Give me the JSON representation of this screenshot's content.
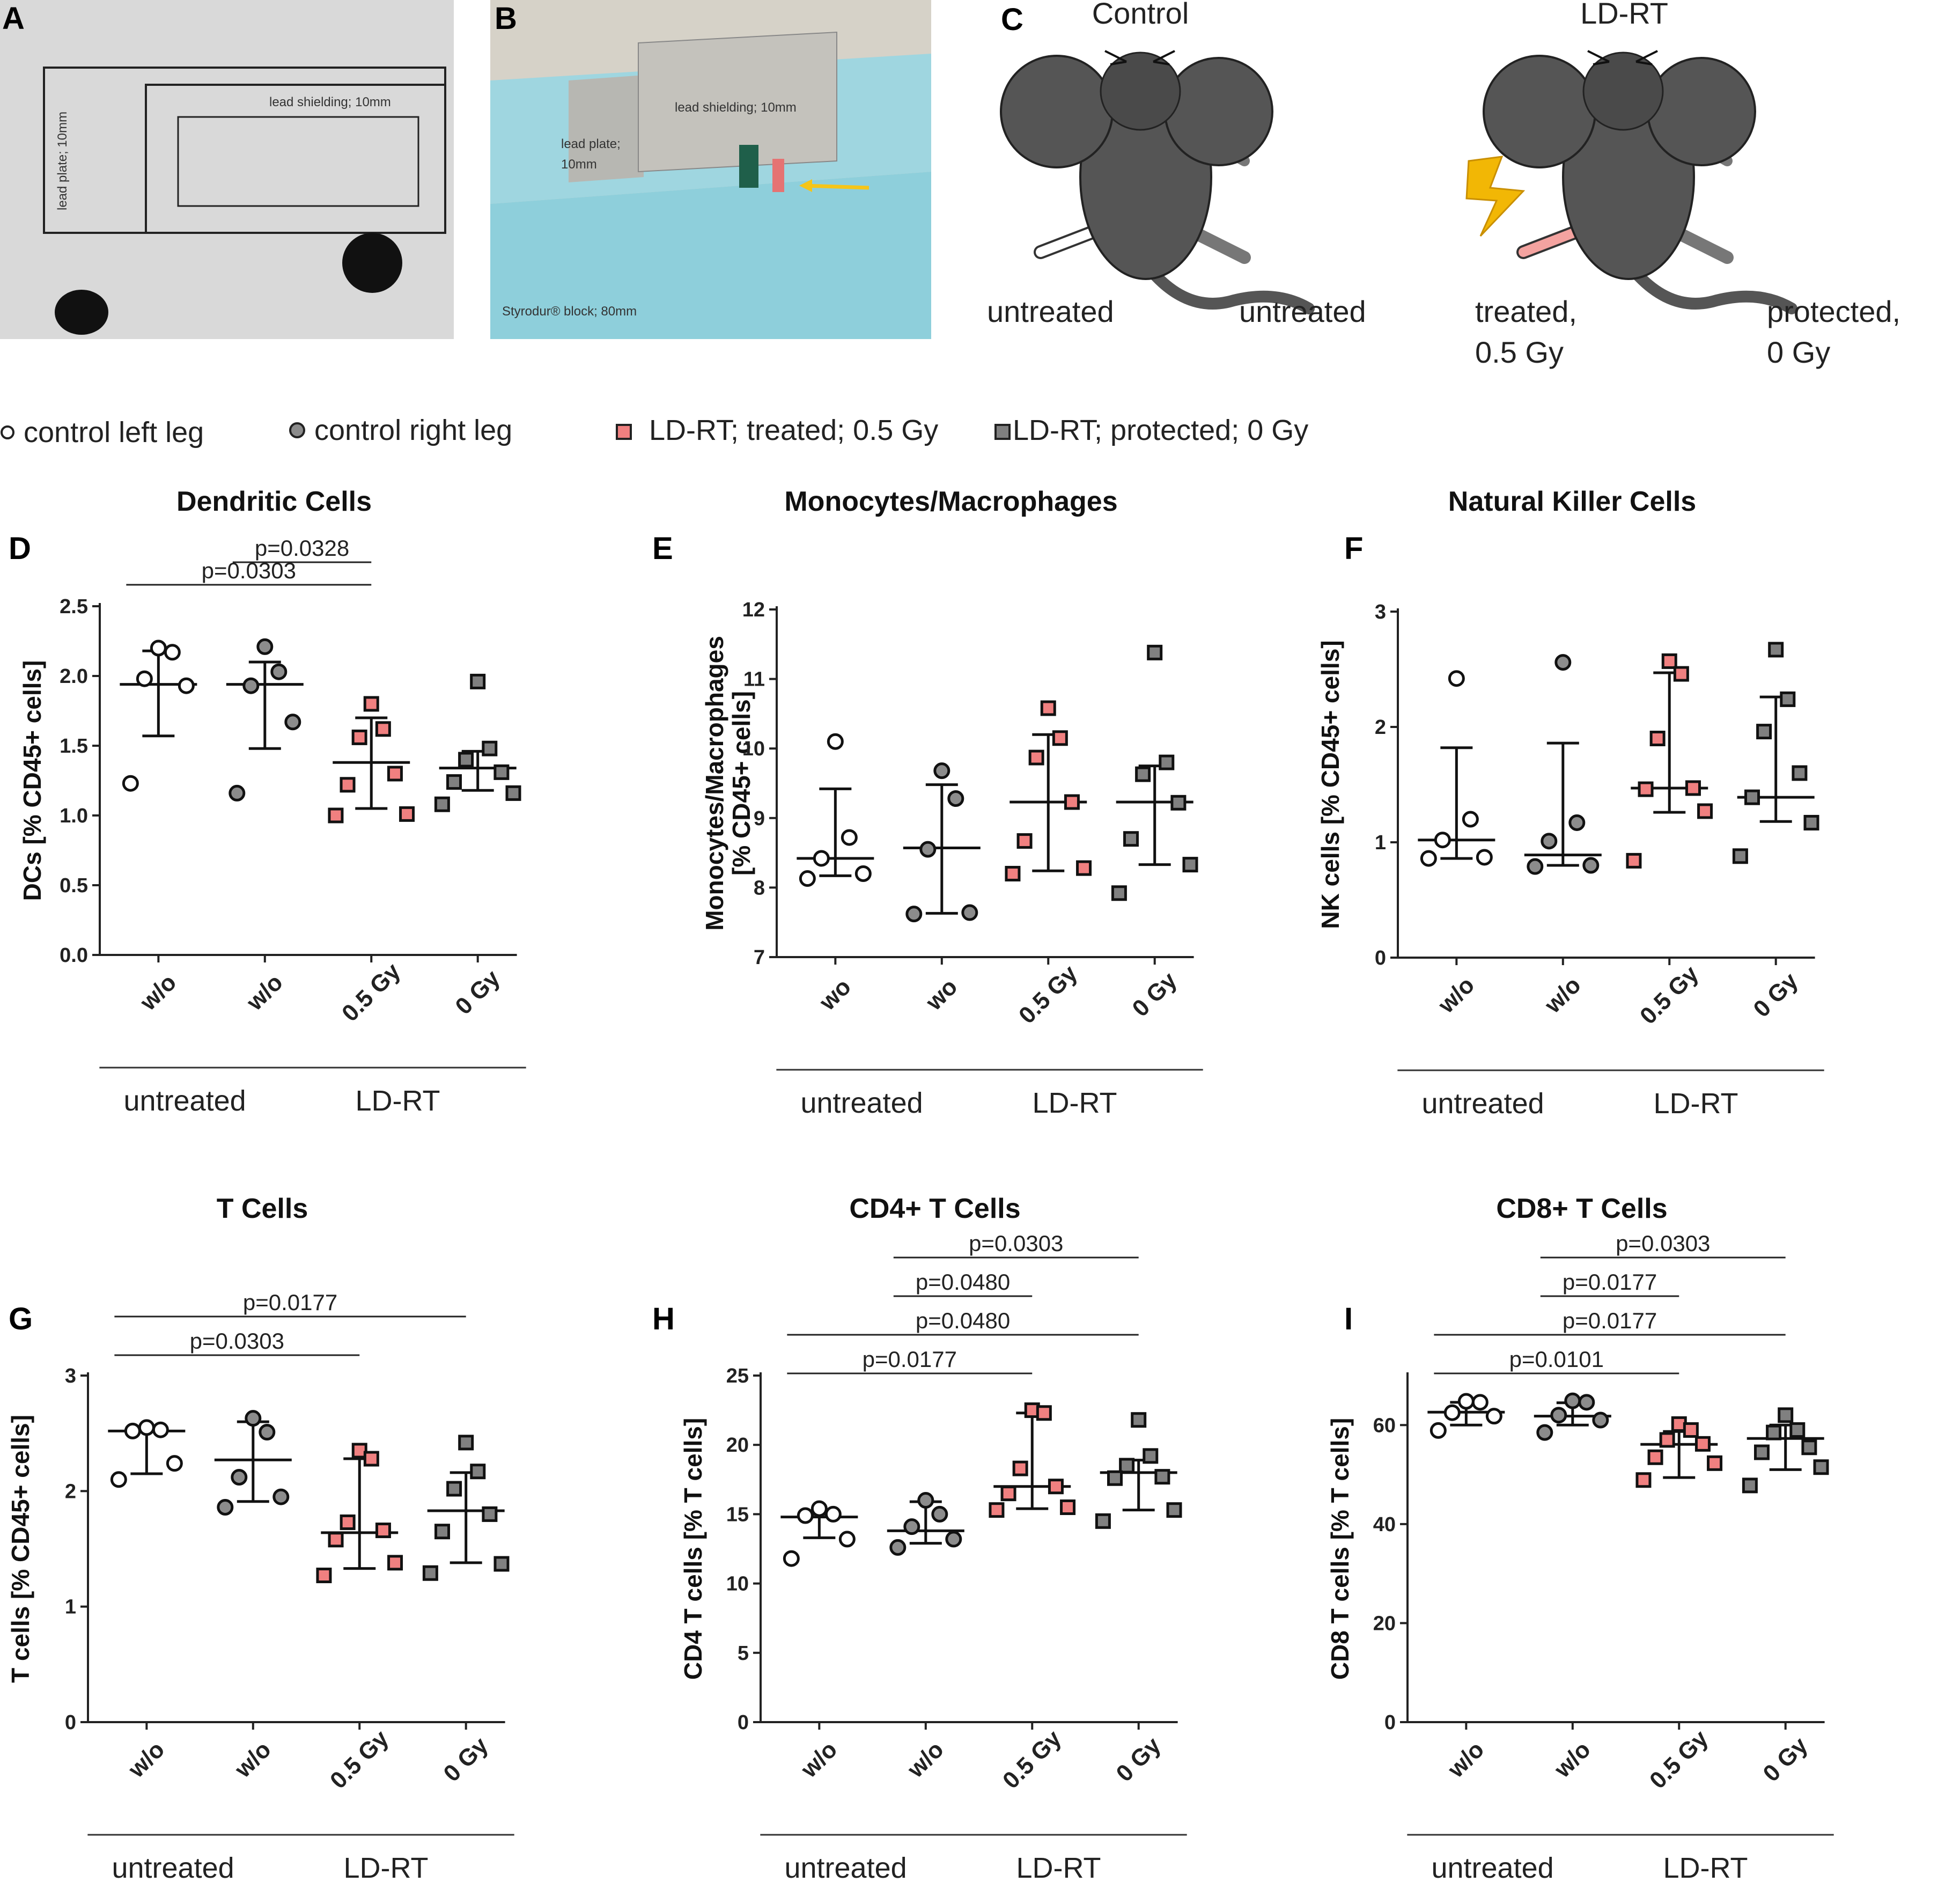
{
  "figure": {
    "panel_a": {
      "letter": "A",
      "lead_plate_label": "lead plate; 10mm",
      "lead_shielding_label": "lead shielding; 10mm"
    },
    "panel_b": {
      "letter": "B",
      "lead_shielding_label": "lead shielding; 10mm",
      "lead_plate_label_1": "lead plate;",
      "lead_plate_label_2": "10mm",
      "block_label": "Styrodur® block; 80mm",
      "accent_color": "#f5c518"
    },
    "panel_c": {
      "letter": "C",
      "control_title": "Control",
      "ldrt_title": "LD-RT",
      "control_left": "untreated",
      "control_right": "untreated",
      "ldrt_left_1": "treated,",
      "ldrt_left_2": "0.5 Gy",
      "ldrt_right_1": "protected,",
      "ldrt_right_2": "0 Gy",
      "lightning_color": "#f2b705",
      "treated_leg_color": "#f4a3a0"
    },
    "legend": {
      "items": [
        {
          "label": "control left leg",
          "marker": "open-circle"
        },
        {
          "label": "control right leg",
          "marker": "grey-circle"
        },
        {
          "label": "LD-RT; treated; 0.5 Gy",
          "marker": "pink-square"
        },
        {
          "label": "LD-RT; protected; 0 Gy",
          "marker": "grey-square"
        }
      ]
    },
    "colors": {
      "open": "#ffffff",
      "grey": "#8c8c8c",
      "pink": "#f08080",
      "dark_grey": "#808080",
      "stroke": "#1a1a1a"
    }
  },
  "chart_data": [
    {
      "id": "D",
      "type": "scatter",
      "title": "Dendritic Cells",
      "ylabel": "DCs [% CD45+ cells]",
      "ylabel2": "",
      "ylim": [
        0,
        2.5
      ],
      "ticks": [
        "0.0",
        "0.5",
        "1.0",
        "1.5",
        "2.0",
        "2.5"
      ],
      "categories": [
        "w/o",
        "w/o",
        "0.5 Gy",
        "0 Gy"
      ],
      "groups": [
        "untreated",
        "LD-RT"
      ],
      "series": [
        {
          "name": "control left leg",
          "points": [
            2.2,
            2.17,
            1.98,
            1.93,
            1.23
          ],
          "median": 1.94,
          "q1": 1.57,
          "q3": 2.18
        },
        {
          "name": "control right leg",
          "points": [
            2.21,
            2.03,
            1.93,
            1.67,
            1.16
          ],
          "median": 1.94,
          "q1": 1.48,
          "q3": 2.1
        },
        {
          "name": "LD-RT; treated; 0.5 Gy",
          "points": [
            1.8,
            1.62,
            1.56,
            1.3,
            1.22,
            1.01,
            1.0
          ],
          "median": 1.38,
          "q1": 1.05,
          "q3": 1.7
        },
        {
          "name": "LD-RT; protected; 0 Gy",
          "points": [
            1.96,
            1.48,
            1.4,
            1.31,
            1.24,
            1.16,
            1.08
          ],
          "median": 1.34,
          "q1": 1.18,
          "q3": 1.46
        }
      ],
      "pvalues": [
        {
          "label": "p=0.0303",
          "from": 0,
          "to": 2,
          "level": 0
        },
        {
          "label": "p=0.0328",
          "from": 1,
          "to": 2,
          "level": 1
        }
      ]
    },
    {
      "id": "E",
      "type": "scatter",
      "title": "Monocytes/Macrophages",
      "ylabel": "Monocytes/Macrophages",
      "ylabel2": "[% CD45+ cells]",
      "ylim": [
        7,
        12
      ],
      "ticks": [
        "7",
        "8",
        "9",
        "10",
        "11",
        "12"
      ],
      "categories": [
        "wo",
        "wo",
        "0.5 Gy",
        "0 Gy"
      ],
      "groups": [
        "untreated",
        "LD-RT"
      ],
      "series": [
        {
          "name": "control left leg",
          "points": [
            10.1,
            8.72,
            8.42,
            8.2,
            8.13
          ],
          "median": 8.42,
          "q1": 8.17,
          "q3": 9.42
        },
        {
          "name": "control right leg",
          "points": [
            9.68,
            9.28,
            8.55,
            7.64,
            7.62
          ],
          "median": 8.57,
          "q1": 7.63,
          "q3": 9.48
        },
        {
          "name": "LD-RT; treated; 0.5 Gy",
          "points": [
            10.58,
            10.15,
            9.87,
            9.23,
            8.67,
            8.28,
            8.2
          ],
          "median": 9.23,
          "q1": 8.24,
          "q3": 10.2
        },
        {
          "name": "LD-RT; protected; 0 Gy",
          "points": [
            11.38,
            9.8,
            9.63,
            9.22,
            8.7,
            8.33,
            7.92
          ],
          "median": 9.23,
          "q1": 8.33,
          "q3": 9.75
        }
      ],
      "pvalues": []
    },
    {
      "id": "F",
      "type": "scatter",
      "title": "Natural Killer Cells",
      "ylabel": "NK cells [% CD45+ cells]",
      "ylabel2": "",
      "ylim": [
        0,
        3
      ],
      "ticks": [
        "0",
        "1",
        "2",
        "3"
      ],
      "categories": [
        "w/o",
        "w/o",
        "0.5 Gy",
        "0 Gy"
      ],
      "groups": [
        "untreated",
        "LD-RT"
      ],
      "series": [
        {
          "name": "control left leg",
          "points": [
            2.42,
            1.2,
            1.02,
            0.87,
            0.86
          ],
          "median": 1.02,
          "q1": 0.86,
          "q3": 1.82
        },
        {
          "name": "control right leg",
          "points": [
            2.56,
            1.17,
            1.01,
            0.8,
            0.79
          ],
          "median": 0.89,
          "q1": 0.8,
          "q3": 1.86
        },
        {
          "name": "LD-RT; treated; 0.5 Gy",
          "points": [
            2.57,
            2.46,
            1.9,
            1.47,
            1.46,
            1.27,
            0.84
          ],
          "median": 1.47,
          "q1": 1.26,
          "q3": 2.47
        },
        {
          "name": "LD-RT; protected; 0 Gy",
          "points": [
            2.67,
            2.24,
            1.96,
            1.6,
            1.39,
            1.17,
            0.88
          ],
          "median": 1.39,
          "q1": 1.18,
          "q3": 2.26
        }
      ],
      "pvalues": []
    },
    {
      "id": "G",
      "type": "scatter",
      "title": "T Cells",
      "ylabel": "T cells [% CD45+ cells]",
      "ylabel2": "",
      "ylim": [
        0,
        3
      ],
      "ticks": [
        "0",
        "1",
        "2",
        "3"
      ],
      "categories": [
        "w/o",
        "w/o",
        "0.5 Gy",
        "0 Gy"
      ],
      "groups": [
        "untreated",
        "LD-RT"
      ],
      "series": [
        {
          "name": "control left leg",
          "points": [
            2.55,
            2.53,
            2.52,
            2.24,
            2.1
          ],
          "median": 2.52,
          "q1": 2.15,
          "q3": 2.54
        },
        {
          "name": "control right leg",
          "points": [
            2.63,
            2.51,
            2.12,
            1.95,
            1.86
          ],
          "median": 2.27,
          "q1": 1.91,
          "q3": 2.6
        },
        {
          "name": "LD-RT; treated; 0.5 Gy",
          "points": [
            2.35,
            2.28,
            1.73,
            1.66,
            1.58,
            1.38,
            1.27
          ],
          "median": 1.64,
          "q1": 1.33,
          "q3": 2.28
        },
        {
          "name": "LD-RT; protected; 0 Gy",
          "points": [
            2.42,
            2.17,
            2.02,
            1.8,
            1.65,
            1.37,
            1.29
          ],
          "median": 1.83,
          "q1": 1.38,
          "q3": 2.16
        }
      ],
      "pvalues": [
        {
          "label": "p=0.0303",
          "from": 0,
          "to": 2,
          "level": 0
        },
        {
          "label": "p=0.0177",
          "from": 0,
          "to": 3,
          "level": 1
        }
      ]
    },
    {
      "id": "H",
      "type": "scatter",
      "title": "CD4+ T Cells",
      "ylabel": "CD4 T cells [% T cells]",
      "ylabel2": "",
      "ylim": [
        0,
        25
      ],
      "ticks": [
        "0",
        "5",
        "10",
        "15",
        "20",
        "25"
      ],
      "categories": [
        "w/o",
        "w/o",
        "0.5 Gy",
        "0 Gy"
      ],
      "groups": [
        "untreated",
        "LD-RT"
      ],
      "series": [
        {
          "name": "control left leg",
          "points": [
            15.4,
            15.0,
            14.9,
            13.2,
            11.8
          ],
          "median": 14.8,
          "q1": 13.3,
          "q3": 15.0
        },
        {
          "name": "control right leg",
          "points": [
            16.0,
            15.0,
            14.1,
            13.2,
            12.6
          ],
          "median": 13.8,
          "q1": 12.9,
          "q3": 15.9
        },
        {
          "name": "LD-RT; treated; 0.5 Gy",
          "points": [
            22.5,
            22.3,
            18.3,
            17.0,
            16.5,
            15.5,
            15.3
          ],
          "median": 17.0,
          "q1": 15.4,
          "q3": 22.3
        },
        {
          "name": "LD-RT; protected; 0 Gy",
          "points": [
            21.8,
            19.2,
            18.5,
            17.7,
            17.6,
            15.3,
            14.5
          ],
          "median": 18.0,
          "q1": 15.3,
          "q3": 18.9
        }
      ],
      "pvalues": [
        {
          "label": "p=0.0177",
          "from": 0,
          "to": 2,
          "level": 0
        },
        {
          "label": "p=0.0480",
          "from": 0,
          "to": 3,
          "level": 1
        },
        {
          "label": "p=0.0480",
          "from": 1,
          "to": 2,
          "level": 2
        },
        {
          "label": "p=0.0303",
          "from": 1,
          "to": 3,
          "level": 3
        }
      ]
    },
    {
      "id": "I",
      "type": "scatter",
      "title": "CD8+ T Cells",
      "ylabel": "CD8 T cells [% T cells]",
      "ylabel2": "",
      "ylim": [
        0,
        70
      ],
      "ticks": [
        "0",
        "20",
        "40",
        "60"
      ],
      "categories": [
        "w/o",
        "w/o",
        "0.5 Gy",
        "0 Gy"
      ],
      "groups": [
        "untreated",
        "LD-RT"
      ],
      "series": [
        {
          "name": "control left leg",
          "points": [
            64.8,
            64.6,
            62.5,
            61.8,
            58.9
          ],
          "median": 62.6,
          "q1": 60.0,
          "q3": 64.6
        },
        {
          "name": "control right leg",
          "points": [
            64.9,
            64.6,
            62.0,
            61.0,
            58.5
          ],
          "median": 61.8,
          "q1": 60.0,
          "q3": 64.5
        },
        {
          "name": "LD-RT; treated; 0.5 Gy",
          "points": [
            60.2,
            59.0,
            57.0,
            56.2,
            53.5,
            52.3,
            48.9
          ],
          "median": 56.1,
          "q1": 49.4,
          "q3": 58.7
        },
        {
          "name": "LD-RT; protected; 0 Gy",
          "points": [
            62.0,
            59.0,
            58.5,
            55.5,
            54.5,
            51.5,
            47.8
          ],
          "median": 57.3,
          "q1": 51.0,
          "q3": 60.0
        }
      ],
      "pvalues": [
        {
          "label": "p=0.0101",
          "from": 0,
          "to": 2,
          "level": 0
        },
        {
          "label": "p=0.0177",
          "from": 0,
          "to": 3,
          "level": 1
        },
        {
          "label": "p=0.0177",
          "from": 1,
          "to": 2,
          "level": 2
        },
        {
          "label": "p=0.0303",
          "from": 1,
          "to": 3,
          "level": 3
        }
      ]
    }
  ]
}
